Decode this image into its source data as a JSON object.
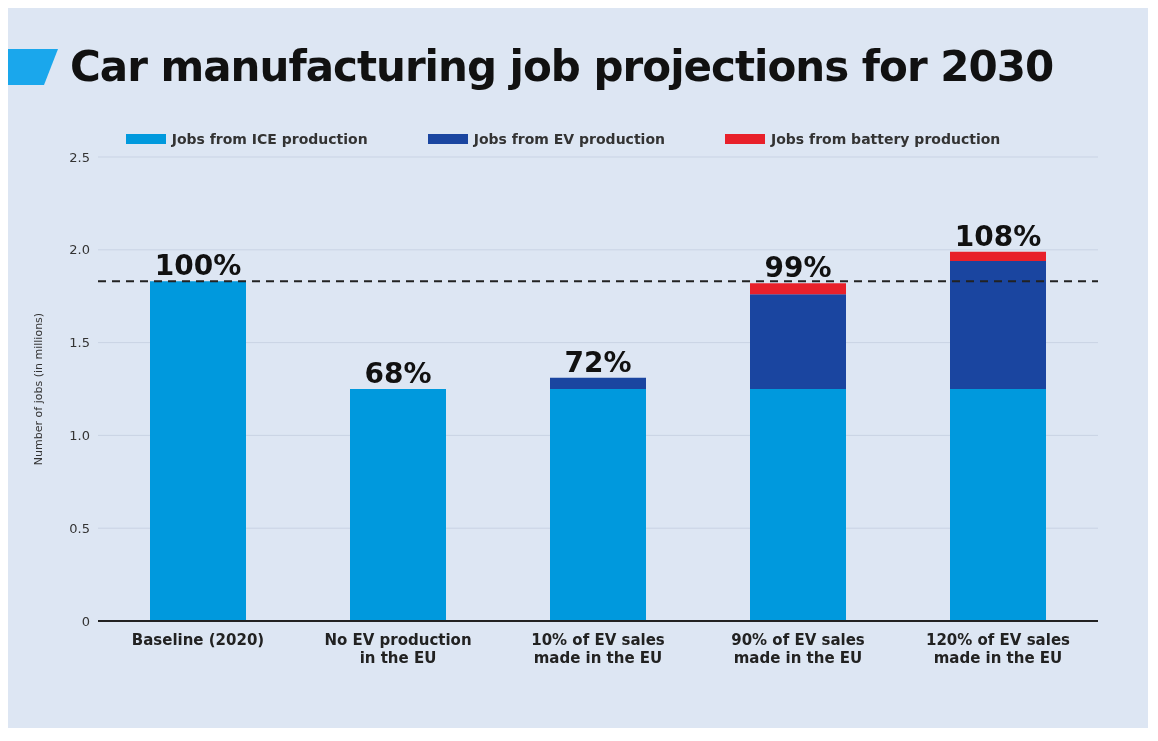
{
  "chart_data": {
    "type": "bar",
    "title": "Car manufacturing job projections for 2030",
    "ylabel": "Number of jobs (in millions)",
    "categories": [
      "Baseline (2020)",
      "No EV production in the EU",
      "10% of EV sales made in the EU",
      "90% of EV sales made in the EU",
      "120% of EV sales made in the EU"
    ],
    "series": [
      {
        "name": "Jobs from ICE production",
        "color": "#0099dd",
        "values": [
          1.83,
          1.25,
          1.25,
          1.25,
          1.25
        ]
      },
      {
        "name": "Jobs from EV production",
        "color": "#1a45a0",
        "values": [
          null,
          null,
          0.06,
          0.51,
          0.69
        ]
      },
      {
        "name": "Jobs from battery production",
        "color": "#e8202a",
        "values": [
          null,
          null,
          null,
          0.06,
          0.05
        ]
      }
    ],
    "stacked": true,
    "annotations": [
      {
        "text": "100%",
        "x": "Baseline (2020)",
        "y": 1.83
      },
      {
        "text": "68%",
        "x": "No EV production in the EU",
        "y": 1.25
      },
      {
        "text": "72%",
        "x": "10% of EV sales made in the EU",
        "y": 1.31
      },
      {
        "text": "99%",
        "x": "90% of EV sales made in the EU",
        "y": 1.82
      },
      {
        "text": "108%",
        "x": "120% of EV sales made in the EU",
        "y": 1.99
      }
    ],
    "ylim": [
      0,
      2.5
    ],
    "yticks": [
      0,
      {
        "value": 0.5,
        "label": "0.5"
      },
      {
        "value": 1,
        "label": "1.0"
      },
      {
        "value": 1.5,
        "label": "1.5"
      },
      {
        "value": 2,
        "label": "2.0"
      },
      {
        "value": 2.5,
        "label": "2.5"
      }
    ],
    "ref_lines": [
      {
        "axis": "y",
        "value": 1.83,
        "color": "#222222",
        "line_style": "dashed"
      }
    ],
    "grid": "y",
    "legend": "top"
  }
}
